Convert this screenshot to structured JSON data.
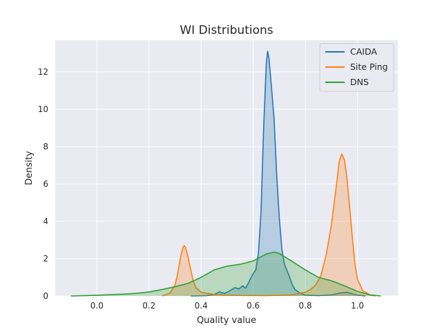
{
  "chart_data": {
    "type": "area",
    "title": "WI Distributions",
    "xlabel": "Quality value",
    "ylabel": "Density",
    "xlim": [
      -0.16,
      1.155
    ],
    "ylim": [
      0,
      13.7
    ],
    "xticks": [
      0.0,
      0.2,
      0.4,
      0.6,
      0.8,
      1.0
    ],
    "xtick_labels": [
      "0.0",
      "0.2",
      "0.4",
      "0.6",
      "0.8",
      "1.0"
    ],
    "yticks": [
      0,
      2,
      4,
      6,
      8,
      10,
      12
    ],
    "ytick_labels": [
      "0",
      "2",
      "4",
      "6",
      "8",
      "10",
      "12"
    ],
    "grid": true,
    "legend_position": "top-right",
    "series": [
      {
        "name": "CAIDA",
        "color": "#1f77b4",
        "points": [
          [
            0.36,
            0.0
          ],
          [
            0.42,
            0.02
          ],
          [
            0.45,
            0.08
          ],
          [
            0.47,
            0.22
          ],
          [
            0.49,
            0.14
          ],
          [
            0.51,
            0.28
          ],
          [
            0.53,
            0.45
          ],
          [
            0.545,
            0.38
          ],
          [
            0.56,
            0.55
          ],
          [
            0.57,
            0.42
          ],
          [
            0.58,
            0.65
          ],
          [
            0.59,
            0.95
          ],
          [
            0.6,
            1.2
          ],
          [
            0.61,
            1.4
          ],
          [
            0.62,
            2.3
          ],
          [
            0.63,
            4.5
          ],
          [
            0.64,
            9.0
          ],
          [
            0.65,
            12.4
          ],
          [
            0.655,
            13.1
          ],
          [
            0.66,
            12.8
          ],
          [
            0.67,
            11.2
          ],
          [
            0.68,
            9.5
          ],
          [
            0.69,
            6.5
          ],
          [
            0.7,
            4.2
          ],
          [
            0.71,
            2.5
          ],
          [
            0.72,
            1.7
          ],
          [
            0.73,
            1.35
          ],
          [
            0.74,
            1.0
          ],
          [
            0.75,
            0.6
          ],
          [
            0.76,
            0.35
          ],
          [
            0.78,
            0.15
          ],
          [
            0.8,
            0.05
          ],
          [
            0.85,
            0.02
          ],
          [
            0.9,
            0.06
          ],
          [
            0.93,
            0.15
          ],
          [
            0.96,
            0.2
          ],
          [
            0.98,
            0.12
          ],
          [
            1.0,
            0.05
          ],
          [
            1.03,
            0.0
          ]
        ]
      },
      {
        "name": "Site Ping",
        "color": "#ff7f0e",
        "points": [
          [
            0.25,
            0.0
          ],
          [
            0.28,
            0.15
          ],
          [
            0.3,
            0.6
          ],
          [
            0.31,
            1.2
          ],
          [
            0.32,
            2.0
          ],
          [
            0.33,
            2.6
          ],
          [
            0.335,
            2.7
          ],
          [
            0.34,
            2.6
          ],
          [
            0.35,
            2.1
          ],
          [
            0.36,
            1.4
          ],
          [
            0.37,
            0.8
          ],
          [
            0.38,
            0.45
          ],
          [
            0.4,
            0.2
          ],
          [
            0.45,
            0.08
          ],
          [
            0.55,
            0.03
          ],
          [
            0.65,
            0.02
          ],
          [
            0.75,
            0.06
          ],
          [
            0.8,
            0.2
          ],
          [
            0.82,
            0.35
          ],
          [
            0.84,
            0.6
          ],
          [
            0.86,
            1.1
          ],
          [
            0.88,
            2.2
          ],
          [
            0.9,
            3.8
          ],
          [
            0.92,
            6.0
          ],
          [
            0.93,
            7.2
          ],
          [
            0.94,
            7.6
          ],
          [
            0.95,
            7.3
          ],
          [
            0.96,
            6.3
          ],
          [
            0.97,
            4.8
          ],
          [
            0.98,
            3.2
          ],
          [
            0.99,
            1.8
          ],
          [
            1.0,
            0.9
          ],
          [
            1.02,
            0.3
          ],
          [
            1.05,
            0.05
          ],
          [
            1.07,
            0.0
          ]
        ]
      },
      {
        "name": "DNS",
        "color": "#2ca02c",
        "points": [
          [
            -0.1,
            0.0
          ],
          [
            -0.05,
            0.02
          ],
          [
            0.0,
            0.04
          ],
          [
            0.05,
            0.07
          ],
          [
            0.1,
            0.1
          ],
          [
            0.15,
            0.14
          ],
          [
            0.2,
            0.22
          ],
          [
            0.25,
            0.35
          ],
          [
            0.3,
            0.5
          ],
          [
            0.35,
            0.68
          ],
          [
            0.4,
            1.0
          ],
          [
            0.45,
            1.4
          ],
          [
            0.5,
            1.6
          ],
          [
            0.55,
            1.7
          ],
          [
            0.6,
            1.88
          ],
          [
            0.65,
            2.25
          ],
          [
            0.68,
            2.35
          ],
          [
            0.7,
            2.28
          ],
          [
            0.75,
            1.85
          ],
          [
            0.8,
            1.4
          ],
          [
            0.85,
            1.0
          ],
          [
            0.9,
            0.82
          ],
          [
            0.95,
            0.55
          ],
          [
            1.0,
            0.25
          ],
          [
            1.05,
            0.06
          ],
          [
            1.09,
            0.0
          ]
        ]
      }
    ]
  }
}
